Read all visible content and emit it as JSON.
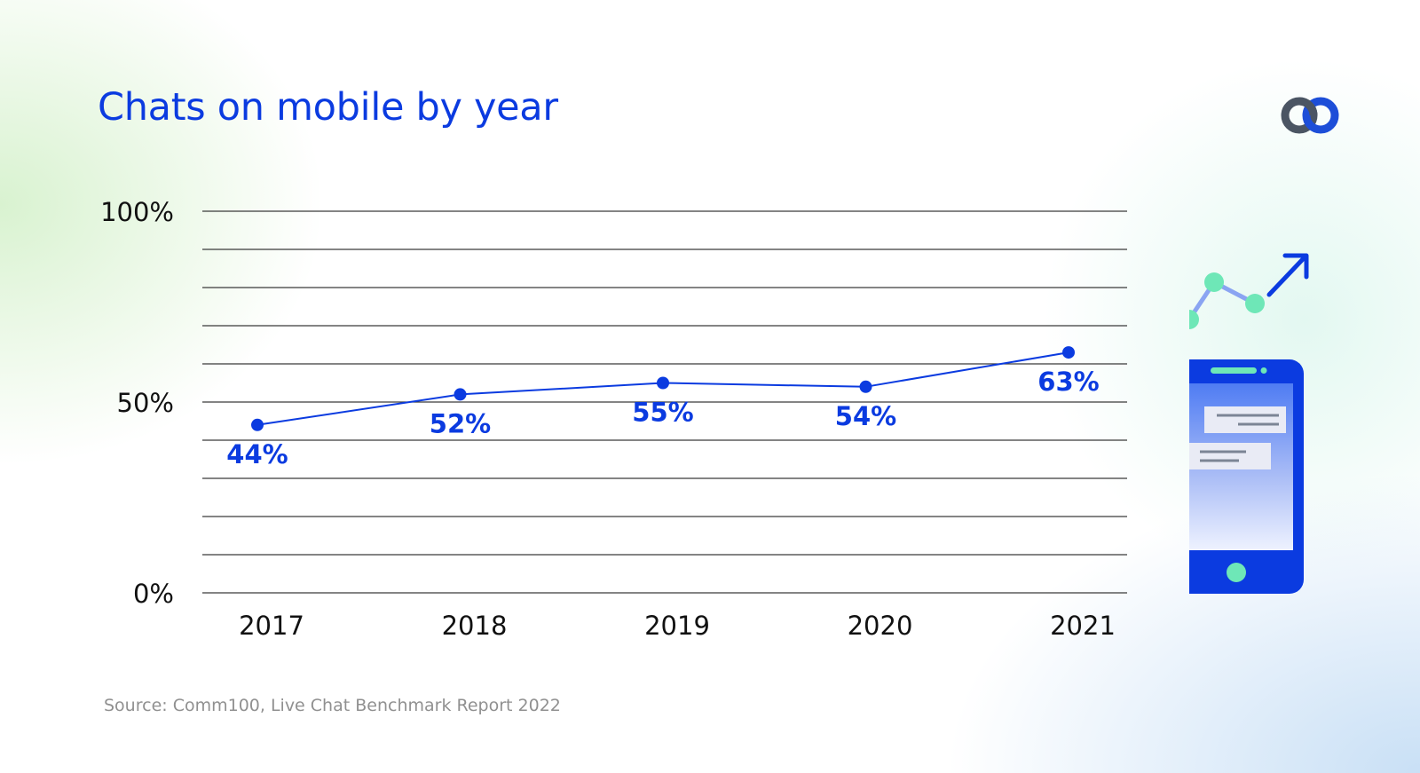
{
  "header": {
    "title": "Chats on mobile by year"
  },
  "footer": {
    "source": "Source: Comm100, Live Chat Benchmark Report 2022"
  },
  "colors": {
    "accent": "#0b3be0",
    "mint": "#6ee7b7",
    "axis_text": "#111111",
    "source_text": "#909090"
  },
  "icons": {
    "brand_logo": "comm100-logo-icon",
    "illustration": "phone-chat-trend-icon"
  },
  "chart_data": {
    "type": "line",
    "title": "Chats on mobile by year",
    "categories": [
      "2017",
      "2018",
      "2019",
      "2020",
      "2021"
    ],
    "series": [
      {
        "values": [
          44,
          52,
          55,
          54,
          63
        ],
        "color": "#0b3be0"
      }
    ],
    "data_labels": [
      "44%",
      "52%",
      "55%",
      "54%",
      "63%"
    ],
    "label_placement": [
      "below",
      "below",
      "above",
      "below",
      "below"
    ],
    "ylim": [
      0,
      100
    ],
    "y_ticks": [
      0,
      50,
      100
    ],
    "y_tick_labels": [
      "0%",
      "50%",
      "100%"
    ],
    "gridline_step": 10,
    "grid": true,
    "xlabel": "",
    "ylabel": ""
  }
}
